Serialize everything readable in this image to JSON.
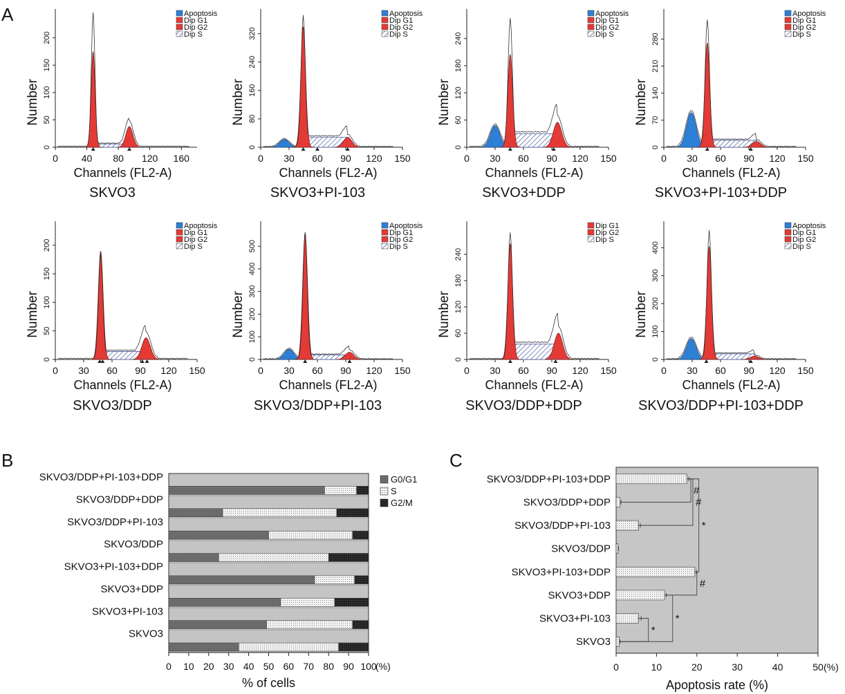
{
  "panel_labels": {
    "a": "A",
    "b": "B",
    "c": "C"
  },
  "colors": {
    "apoptosis": "#2e7fd6",
    "g1": "#e43a36",
    "g2": "#e43a36",
    "s_hatch": "#4a5aa0",
    "bar_bg": "#c4c4c4",
    "g0g1_bar": "#6e6e6e",
    "s_bar": "#f0f0f0",
    "g2m_bar": "#2a2a2a",
    "plot_c_bg": "#c6c6c6"
  },
  "histograms": [
    {
      "title": "SKVO3",
      "xlabel": "Channels (FL2-A)",
      "ylabel": "Number",
      "xticks": [
        "0",
        "40",
        "80",
        "120",
        "160"
      ],
      "xmax": 180,
      "yticks": [
        "0",
        "50",
        "100",
        "150",
        "200"
      ],
      "ymax": 240,
      "legend": [
        "Apoptosis",
        "Dip G1",
        "Dip G2",
        "Dip S"
      ],
      "apo_peak": 0,
      "g1_peak": 175,
      "g1_pos": 48,
      "g2_peak": 38,
      "g2_pos": 94,
      "s_level": 6,
      "g1_total": 245,
      "markers": [
        48,
        94
      ]
    },
    {
      "title": "SKVO3+PI-103",
      "xlabel": "Channels (FL2-A)",
      "ylabel": "Number",
      "xticks": [
        "0",
        "30",
        "60",
        "90",
        "120",
        "150"
      ],
      "xmax": 150,
      "yticks": [
        "0",
        "80",
        "160",
        "240",
        "320"
      ],
      "ymax": 370,
      "legend": [
        "Apoptosis",
        "Dip G1",
        "Dip G2",
        "Dip S"
      ],
      "apo_peak": 22,
      "apo_pos": 25,
      "g1_peak": 340,
      "g1_pos": 45,
      "g2_peak": 28,
      "g2_pos": 92,
      "s_level": 28,
      "g1_total": 370,
      "markers": [
        45,
        60,
        92
      ]
    },
    {
      "title": "SKVO3+DDP",
      "xlabel": "Channels (FL2-A)",
      "ylabel": "Number",
      "xticks": [
        "0",
        "30",
        "60",
        "90",
        "120",
        "150"
      ],
      "xmax": 150,
      "yticks": [
        "0",
        "60",
        "120",
        "180",
        "240"
      ],
      "ymax": 290,
      "legend": [
        "Apoptosis",
        "Dip G1",
        "Dip G2",
        "Dip S"
      ],
      "apo_peak": 48,
      "apo_pos": 30,
      "g1_peak": 205,
      "g1_pos": 46,
      "g2_peak": 55,
      "g2_pos": 96,
      "s_level": 30,
      "g1_total": 285,
      "markers": [
        46,
        92
      ]
    },
    {
      "title": "SKVO3+PI-103+DDP",
      "xlabel": "Channels (FL2-A)",
      "ylabel": "Number",
      "xticks": [
        "0",
        "30",
        "60",
        "90",
        "120",
        "150"
      ],
      "xmax": 150,
      "yticks": [
        "0",
        "70",
        "140",
        "210",
        "280"
      ],
      "ymax": 340,
      "legend": [
        "Apoptosis",
        "Dip G1",
        "Dip G2",
        "Dip S"
      ],
      "apo_peak": 90,
      "apo_pos": 29,
      "g1_peak": 270,
      "g1_pos": 46,
      "g2_peak": 15,
      "g2_pos": 98,
      "s_level": 18,
      "g1_total": 330,
      "markers": [
        46,
        92
      ]
    },
    {
      "title": "SKVO3/DDP",
      "xlabel": "Channels (FL2-A)",
      "ylabel": "Number",
      "xticks": [
        "0",
        "30",
        "60",
        "90",
        "120",
        "150"
      ],
      "xmax": 150,
      "yticks": [
        "0",
        "50",
        "100",
        "150",
        "200"
      ],
      "ymax": 230,
      "legend": [
        "Apoptosis",
        "Dip G1",
        "Dip G2",
        "Dip S"
      ],
      "apo_peak": 0,
      "g1_peak": 190,
      "g1_pos": 48,
      "g2_peak": 38,
      "g2_pos": 96,
      "s_level": 14,
      "g1_total": 185,
      "markers": [
        47,
        50,
        92,
        97
      ]
    },
    {
      "title": "SKVO3/DDP+PI-103",
      "xlabel": "Channels (FL2-A)",
      "ylabel": "Number",
      "xticks": [
        "0",
        "30",
        "60",
        "90",
        "120",
        "150"
      ],
      "xmax": 150,
      "yticks": [
        "0",
        "100",
        "200",
        "300",
        "400",
        "500"
      ],
      "ymax": 580,
      "legend": [
        "Apoptosis",
        "Dip G1",
        "Dip G2",
        "Dip S"
      ],
      "apo_peak": 45,
      "apo_pos": 30,
      "g1_peak": 560,
      "g1_pos": 47,
      "g2_peak": 32,
      "g2_pos": 94,
      "s_level": 20,
      "g1_total": 560,
      "markers": [
        47,
        94
      ]
    },
    {
      "title": "SKVO3/DDP+DDP",
      "xlabel": "Channels (FL2-A)",
      "ylabel": "Number",
      "xticks": [
        "0",
        "30",
        "60",
        "90",
        "120",
        "150"
      ],
      "xmax": 150,
      "yticks": [
        "0",
        "60",
        "120",
        "180",
        "240"
      ],
      "ymax": 300,
      "legend": [
        "Dip G1",
        "Dip G2",
        "Dip S"
      ],
      "apo_peak": 0,
      "g1_peak": 265,
      "g1_pos": 46,
      "g2_peak": 60,
      "g2_pos": 97,
      "s_level": 35,
      "g1_total": 290,
      "markers": [
        46,
        94
      ]
    },
    {
      "title": "SKVO3/DDP+PI-103+DDP",
      "xlabel": "Channels (FL2-A)",
      "ylabel": "Number",
      "xticks": [
        "0",
        "30",
        "60",
        "90",
        "120",
        "150"
      ],
      "xmax": 150,
      "yticks": [
        "0",
        "100",
        "200",
        "300",
        "400"
      ],
      "ymax": 470,
      "legend": [
        "Apoptosis",
        "Dip G1",
        "Dip G2",
        "Dip S"
      ],
      "apo_peak": 75,
      "apo_pos": 29,
      "g1_peak": 405,
      "g1_pos": 48,
      "g2_peak": 12,
      "g2_pos": 96,
      "s_level": 20,
      "g1_total": 460,
      "markers": [
        45,
        92
      ]
    }
  ],
  "chart_data": [
    {
      "type": "bar",
      "orientation": "horizontal-stacked",
      "title": "",
      "categories": [
        "SKVO3/DDP+PI-103+DDP",
        "SKVO3/DDP+DDP",
        "SKVO3/DDP+PI-103",
        "SKVO3/DDP",
        "SKVO3+PI-103+DDP",
        "SKVO3+DDP",
        "SKVO3+PI-103",
        "SKVO3"
      ],
      "series": [
        {
          "name": "G0/G1",
          "values": [
            78,
            27,
            50,
            25,
            73,
            56,
            49,
            35
          ]
        },
        {
          "name": "S",
          "values": [
            16,
            57,
            42,
            55,
            20,
            27,
            43,
            50
          ]
        },
        {
          "name": "G2/M",
          "values": [
            6,
            16,
            8,
            20,
            7,
            17,
            8,
            15
          ]
        }
      ],
      "xlabel": "% of cells",
      "xunit": "(%)",
      "xticks": [
        "0",
        "10",
        "20",
        "30",
        "40",
        "50",
        "60",
        "70",
        "80",
        "90",
        "100"
      ],
      "xlim": [
        0,
        100
      ]
    },
    {
      "type": "bar",
      "orientation": "horizontal",
      "title": "",
      "categories": [
        "SKVO3/DDP+PI-103+DDP",
        "SKVO3/DDP+DDP",
        "SKVO3/DDP+PI-103",
        "SKVO3/DDP",
        "SKVO3+PI-103+DDP",
        "SKVO3+DDP",
        "SKVO3+PI-103",
        "SKVO3"
      ],
      "values": [
        17.5,
        1.0,
        5.5,
        0.5,
        19.5,
        12.0,
        5.5,
        0.8
      ],
      "errors": [
        0.5,
        0.2,
        0.5,
        0.1,
        0.4,
        0.4,
        0.7,
        0.2
      ],
      "xlabel": "Apoptosis rate (%)",
      "xunit": "(%)",
      "xticks": [
        "0",
        "10",
        "20",
        "30",
        "40",
        "50"
      ],
      "xlim": [
        0,
        50
      ],
      "significance": [
        "*",
        "#",
        "#",
        "*",
        "#",
        "*"
      ]
    }
  ]
}
